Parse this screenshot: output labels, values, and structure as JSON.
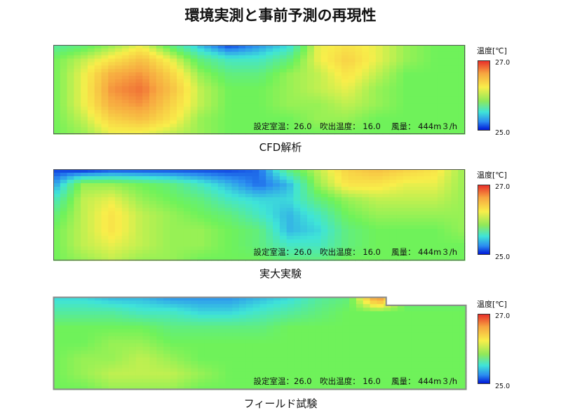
{
  "title": "環境実測と事前予測の再現性",
  "colors": {
    "cold": "#0018d8",
    "mid": "#6ff25a",
    "hot": "#e8302a"
  },
  "chart_data": [
    {
      "type": "heatmap",
      "caption": "CFD解析",
      "info": "設定室温：26.0　吹出温度： 16.0　 風量： 444m３/h",
      "legend": {
        "title": "温度[℃]",
        "max": "27.0",
        "min": "25.0"
      },
      "range": [
        25.0,
        27.0
      ],
      "grid": [
        [
          25.7,
          25.8,
          26.0,
          26.2,
          25.8,
          25.4,
          25.1,
          25.3,
          25.5,
          26.2,
          26.3,
          26.2,
          26.0,
          25.9,
          25.9
        ],
        [
          25.9,
          26.1,
          26.3,
          26.5,
          26.2,
          25.8,
          25.6,
          25.6,
          25.8,
          26.2,
          26.4,
          26.2,
          26.0,
          25.9,
          25.9
        ],
        [
          25.9,
          26.2,
          26.6,
          26.7,
          26.4,
          26.0,
          25.8,
          25.8,
          26.0,
          26.1,
          26.3,
          26.1,
          25.9,
          25.9,
          25.9
        ],
        [
          25.9,
          26.2,
          26.7,
          26.8,
          26.5,
          26.1,
          25.9,
          25.9,
          26.0,
          26.1,
          26.2,
          26.0,
          25.9,
          25.9,
          25.9
        ],
        [
          25.9,
          26.2,
          26.6,
          26.7,
          26.4,
          26.1,
          25.9,
          25.9,
          26.0,
          26.0,
          26.1,
          26.0,
          25.9,
          25.9,
          25.9
        ],
        [
          25.9,
          26.1,
          26.4,
          26.5,
          26.3,
          26.0,
          25.9,
          25.9,
          25.9,
          26.0,
          26.0,
          25.9,
          25.9,
          25.9,
          25.9
        ],
        [
          25.9,
          26.0,
          26.2,
          26.2,
          26.1,
          26.0,
          25.9,
          25.9,
          25.9,
          25.9,
          25.9,
          25.9,
          25.9,
          25.9,
          25.9
        ]
      ]
    },
    {
      "type": "heatmap",
      "caption": "実大実験",
      "info": "設定室温：26.0　吹出温度： 16.0　 風量： 444m３/h",
      "legend": {
        "title": "温度[℃]",
        "max": "27.0",
        "min": "25.0"
      },
      "range": [
        25.0,
        27.0
      ],
      "grid": [
        [
          25.1,
          25.0,
          25.1,
          25.1,
          25.1,
          25.1,
          25.1,
          25.2,
          25.8,
          26.1,
          26.4,
          26.5,
          26.4,
          26.3,
          26.0
        ],
        [
          25.3,
          26.0,
          26.0,
          25.9,
          25.8,
          25.6,
          25.4,
          25.2,
          25.4,
          26.0,
          26.3,
          26.3,
          26.2,
          26.2,
          26.0
        ],
        [
          25.6,
          26.1,
          26.2,
          26.0,
          25.9,
          25.8,
          25.6,
          25.5,
          25.5,
          25.8,
          26.0,
          26.1,
          26.1,
          26.1,
          26.0
        ],
        [
          25.8,
          26.1,
          26.3,
          26.1,
          26.0,
          25.9,
          25.8,
          25.6,
          25.4,
          25.6,
          25.9,
          26.0,
          26.0,
          26.0,
          26.0
        ],
        [
          25.9,
          26.1,
          26.3,
          26.1,
          26.0,
          26.0,
          25.9,
          25.8,
          25.4,
          25.5,
          25.8,
          25.9,
          25.9,
          25.9,
          26.0
        ],
        [
          25.9,
          26.1,
          26.2,
          26.1,
          26.0,
          26.0,
          25.9,
          25.8,
          25.6,
          25.6,
          25.8,
          25.9,
          25.9,
          25.9,
          25.9
        ],
        [
          25.9,
          26.0,
          26.1,
          26.0,
          26.0,
          25.9,
          25.9,
          25.9,
          25.8,
          25.8,
          25.9,
          25.9,
          25.9,
          25.9,
          25.9
        ]
      ]
    },
    {
      "type": "heatmap",
      "caption": "フィールド試験",
      "info": "設定室温：26.0　吹出温度： 16.0　 風量： 444m３/h",
      "legend": {
        "title": "温度[℃]",
        "max": "27.0",
        "min": "25.0"
      },
      "range": [
        25.0,
        27.0
      ],
      "grid": [
        [
          25.5,
          25.5,
          25.4,
          25.4,
          25.3,
          25.3,
          25.3,
          25.4,
          25.5,
          25.7,
          25.8,
          26.8,
          25.8,
          25.8,
          25.8
        ],
        [
          25.7,
          25.7,
          25.7,
          25.6,
          25.6,
          25.5,
          25.5,
          25.6,
          25.7,
          25.8,
          25.9,
          25.9,
          25.9,
          25.9,
          25.9
        ],
        [
          25.9,
          25.9,
          25.9,
          25.9,
          25.8,
          25.8,
          25.8,
          25.8,
          25.9,
          25.9,
          25.9,
          25.9,
          25.9,
          25.9,
          25.9
        ],
        [
          25.9,
          25.9,
          26.0,
          26.0,
          25.9,
          25.9,
          25.9,
          25.9,
          25.9,
          25.9,
          25.9,
          25.9,
          25.9,
          25.9,
          25.9
        ],
        [
          25.9,
          26.0,
          26.0,
          26.1,
          26.0,
          25.9,
          25.9,
          25.9,
          25.9,
          25.9,
          25.9,
          25.9,
          25.9,
          25.9,
          25.9
        ],
        [
          25.9,
          26.0,
          26.1,
          26.1,
          26.1,
          26.0,
          25.9,
          25.9,
          25.9,
          25.9,
          25.9,
          25.9,
          25.9,
          25.9,
          25.9
        ],
        [
          25.9,
          25.9,
          26.0,
          26.0,
          26.0,
          25.9,
          25.9,
          25.9,
          25.9,
          25.9,
          25.9,
          25.9,
          25.9,
          25.9,
          25.9
        ]
      ]
    }
  ]
}
